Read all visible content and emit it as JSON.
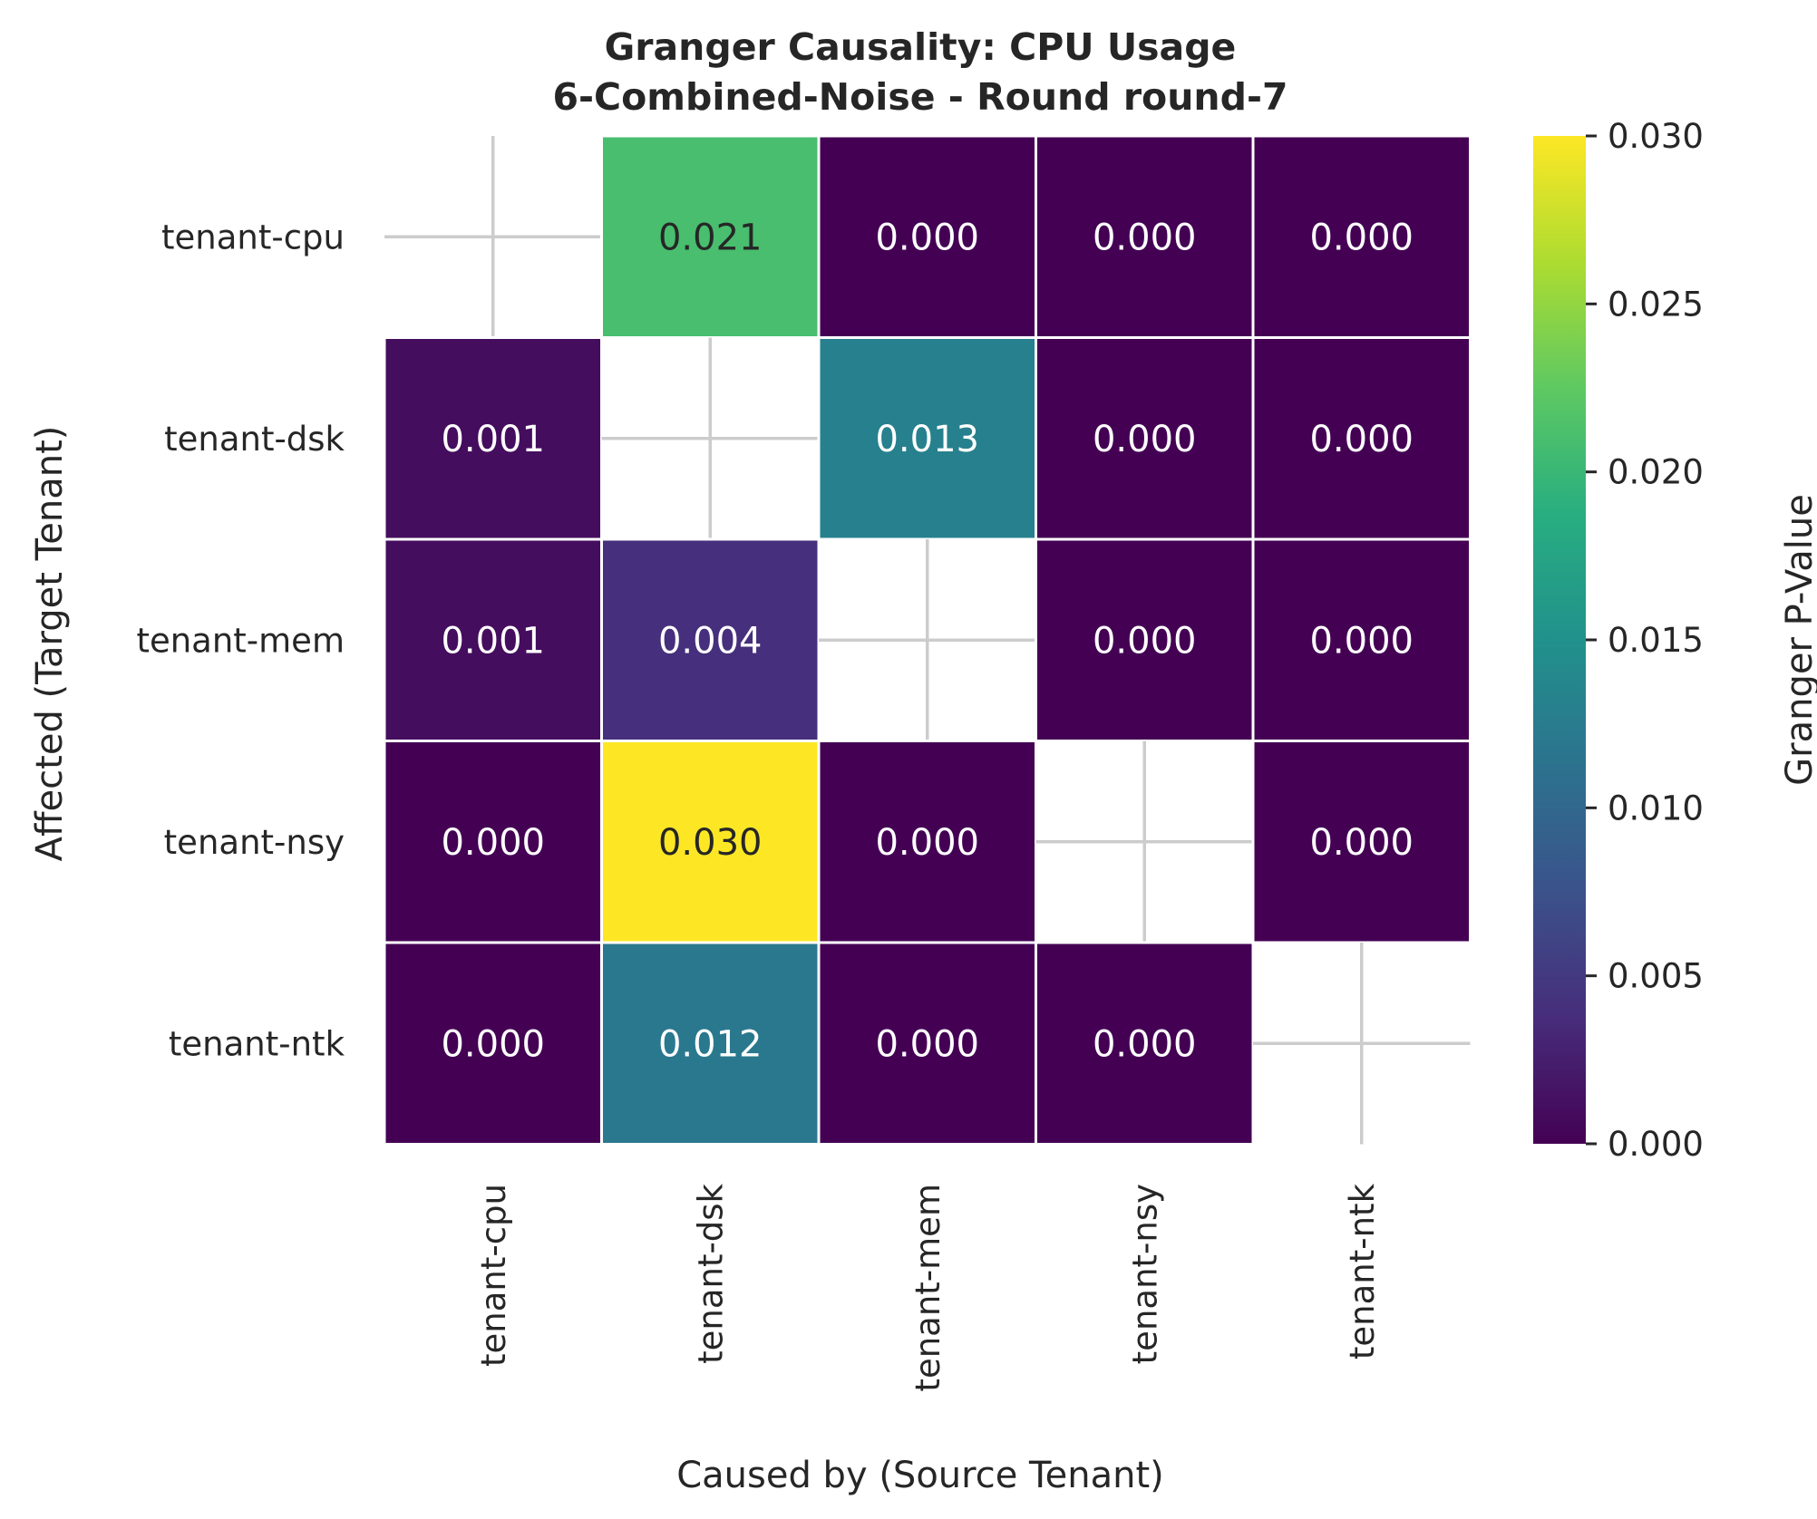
{
  "chart_data": {
    "type": "heatmap",
    "title": "Granger Causality: CPU Usage",
    "subtitle": "6-Combined-Noise - Round round-7",
    "xlabel": "Caused by (Source Tenant)",
    "ylabel": "Affected (Target Tenant)",
    "x_categories": [
      "tenant-cpu",
      "tenant-dsk",
      "tenant-mem",
      "tenant-nsy",
      "tenant-ntk"
    ],
    "y_categories": [
      "tenant-cpu",
      "tenant-dsk",
      "tenant-mem",
      "tenant-nsy",
      "tenant-ntk"
    ],
    "values": [
      [
        null,
        0.021,
        0.0,
        0.0,
        0.0
      ],
      [
        0.001,
        null,
        0.013,
        0.0,
        0.0
      ],
      [
        0.001,
        0.004,
        null,
        0.0,
        0.0
      ],
      [
        0.0,
        0.03,
        0.0,
        null,
        0.0
      ],
      [
        0.0,
        0.012,
        0.0,
        0.0,
        null
      ]
    ],
    "value_format": "0.000",
    "colormap": "viridis",
    "colorbar": {
      "label": "Granger P-Value",
      "range": [
        0.0,
        0.03
      ],
      "ticks": [
        0.0,
        0.005,
        0.01,
        0.015,
        0.02,
        0.025,
        0.03
      ],
      "tick_labels": [
        "0.000",
        "0.005",
        "0.010",
        "0.015",
        "0.020",
        "0.025",
        "0.030"
      ]
    },
    "missing_cell_marker": "cross",
    "colors": {
      "grid_line": "#ffffff",
      "missing_cross": "#cccccc",
      "text_dark": "#262626",
      "text_light": "#ffffff"
    }
  }
}
